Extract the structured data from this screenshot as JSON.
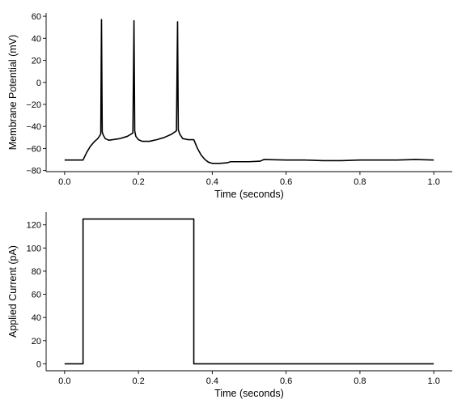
{
  "chart_data": [
    {
      "type": "line",
      "xlabel": "Time (seconds)",
      "ylabel": "Membrane Potential (mV)",
      "xlim": [
        -0.05,
        1.05
      ],
      "ylim": [
        -81,
        63
      ],
      "xticks": [
        0.0,
        0.2,
        0.4,
        0.6,
        0.8,
        1.0
      ],
      "xtick_labels": [
        "0.0",
        "0.2",
        "0.4",
        "0.6",
        "0.8",
        "1.0"
      ],
      "yticks": [
        -80,
        -60,
        -40,
        -20,
        0,
        20,
        40,
        60
      ],
      "ytick_labels": [
        "−80",
        "−60",
        "−40",
        "−20",
        "0",
        "20",
        "40",
        "60"
      ],
      "grid": false,
      "series": [
        {
          "color": "#000000",
          "points": [
            [
              0.0,
              -70.5
            ],
            [
              0.05,
              -70.5
            ],
            [
              0.06,
              -63.5
            ],
            [
              0.07,
              -58
            ],
            [
              0.08,
              -54
            ],
            [
              0.09,
              -51
            ],
            [
              0.098,
              -47
            ],
            [
              0.1,
              57
            ],
            [
              0.102,
              -45
            ],
            [
              0.105,
              -48
            ],
            [
              0.11,
              -51
            ],
            [
              0.12,
              -52.5
            ],
            [
              0.13,
              -52
            ],
            [
              0.15,
              -51
            ],
            [
              0.17,
              -49
            ],
            [
              0.185,
              -46
            ],
            [
              0.188,
              56
            ],
            [
              0.19,
              -44
            ],
            [
              0.193,
              -49
            ],
            [
              0.2,
              -52
            ],
            [
              0.21,
              -53.5
            ],
            [
              0.23,
              -53.5
            ],
            [
              0.25,
              -52
            ],
            [
              0.27,
              -50
            ],
            [
              0.29,
              -47
            ],
            [
              0.303,
              -44
            ],
            [
              0.306,
              55
            ],
            [
              0.308,
              -43
            ],
            [
              0.312,
              -47
            ],
            [
              0.32,
              -51
            ],
            [
              0.335,
              -52
            ],
            [
              0.35,
              -52
            ],
            [
              0.36,
              -60
            ],
            [
              0.37,
              -66
            ],
            [
              0.38,
              -70
            ],
            [
              0.39,
              -72.5
            ],
            [
              0.4,
              -73.5
            ],
            [
              0.42,
              -73.5
            ],
            [
              0.44,
              -73
            ],
            [
              0.45,
              -72
            ],
            [
              0.5,
              -72
            ],
            [
              0.53,
              -71.5
            ],
            [
              0.54,
              -70
            ],
            [
              0.6,
              -70.5
            ],
            [
              0.65,
              -70.5
            ],
            [
              0.7,
              -71
            ],
            [
              0.75,
              -71
            ],
            [
              0.8,
              -70.5
            ],
            [
              0.9,
              -70.5
            ],
            [
              0.95,
              -70
            ],
            [
              1.0,
              -70.5
            ]
          ]
        }
      ]
    },
    {
      "type": "line",
      "xlabel": "Time (seconds)",
      "ylabel": "Applied Current (pA)",
      "xlim": [
        -0.05,
        1.05
      ],
      "ylim": [
        -6,
        131
      ],
      "xticks": [
        0.0,
        0.2,
        0.4,
        0.6,
        0.8,
        1.0
      ],
      "xtick_labels": [
        "0.0",
        "0.2",
        "0.4",
        "0.6",
        "0.8",
        "1.0"
      ],
      "yticks": [
        0,
        20,
        40,
        60,
        80,
        100,
        120
      ],
      "ytick_labels": [
        "0",
        "20",
        "40",
        "60",
        "80",
        "100",
        "120"
      ],
      "grid": false,
      "series": [
        {
          "color": "#000000",
          "points": [
            [
              0.0,
              0
            ],
            [
              0.05,
              0
            ],
            [
              0.05,
              125
            ],
            [
              0.35,
              125
            ],
            [
              0.35,
              0
            ],
            [
              1.0,
              0
            ]
          ]
        }
      ]
    }
  ]
}
